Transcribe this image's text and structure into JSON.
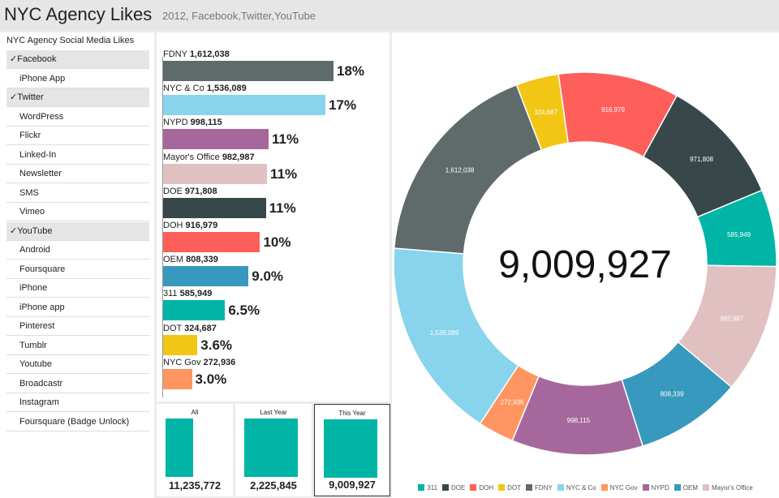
{
  "header": {
    "title": "NYC Agency Likes",
    "subtitle": "2012, Facebook,Twitter,YouTube"
  },
  "filter": {
    "title": "NYC Agency Social Media Likes",
    "items": [
      {
        "label": "Facebook",
        "checked": true
      },
      {
        "label": "iPhone App",
        "checked": false
      },
      {
        "label": "Twitter",
        "checked": true
      },
      {
        "label": "WordPress",
        "checked": false
      },
      {
        "label": "Flickr",
        "checked": false
      },
      {
        "label": "Linked-In",
        "checked": false
      },
      {
        "label": "Newsletter",
        "checked": false
      },
      {
        "label": "SMS",
        "checked": false
      },
      {
        "label": "Vimeo",
        "checked": false
      },
      {
        "label": "YouTube",
        "checked": true
      },
      {
        "label": "Android",
        "checked": false
      },
      {
        "label": "Foursquare",
        "checked": false
      },
      {
        "label": "iPhone",
        "checked": false
      },
      {
        "label": "iPhone app",
        "checked": false
      },
      {
        "label": "Pinterest",
        "checked": false
      },
      {
        "label": "Tumblr",
        "checked": false
      },
      {
        "label": "Youtube",
        "checked": false
      },
      {
        "label": "Broadcastr",
        "checked": false
      },
      {
        "label": "Instagram",
        "checked": false
      },
      {
        "label": "Foursquare (Badge Unlock)",
        "checked": false
      }
    ]
  },
  "chart_data": [
    {
      "type": "bar",
      "orientation": "horizontal",
      "categories": [
        "FDNY",
        "NYC & Co",
        "NYPD",
        "Mayor's Office",
        "DOE",
        "DOH",
        "OEM",
        "311",
        "DOT",
        "NYC Gov"
      ],
      "values": [
        1612038,
        1536089,
        998115,
        982987,
        971808,
        916979,
        808339,
        585949,
        324687,
        272936
      ],
      "value_labels": [
        "1,612,038",
        "1,536,089",
        "998,115",
        "982,987",
        "971,808",
        "916,979",
        "808,339",
        "585,949",
        "324,687",
        "272,936"
      ],
      "pct_labels": [
        "18%",
        "17%",
        "11%",
        "11%",
        "11%",
        "10%",
        "9.0%",
        "6.5%",
        "3.6%",
        "3.0%"
      ],
      "colors": [
        "#5f6a6a",
        "#87d4ec",
        "#a6689c",
        "#e0c0c0",
        "#37474a",
        "#ff5f5b",
        "#3799bd",
        "#00b5a6",
        "#f2c615",
        "#ff9561"
      ]
    },
    {
      "type": "pie",
      "donut": true,
      "center_label": "9,009,927",
      "categories": [
        "DOH",
        "DOE",
        "311",
        "Mayor's Office",
        "OEM",
        "NYPD",
        "NYC Gov",
        "NYC & Co",
        "FDNY",
        "DOT"
      ],
      "values": [
        916979,
        971808,
        585949,
        982987,
        808339,
        998115,
        272936,
        1536089,
        1612038,
        324687
      ],
      "value_labels": [
        "916,979",
        "971,808",
        "585,949",
        "982,987",
        "808,339",
        "998,115",
        "272,936",
        "1,536,089",
        "1,612,038",
        "324,687"
      ],
      "colors": [
        "#ff5f5b",
        "#37474a",
        "#00b5a6",
        "#e0c0c0",
        "#3799bd",
        "#a6689c",
        "#ff9561",
        "#87d4ec",
        "#5f6a6a",
        "#f2c615"
      ]
    },
    {
      "type": "bar",
      "categories": [
        "All",
        "Last Year",
        "This Year"
      ],
      "values": [
        11235772,
        2225845,
        9009927
      ],
      "value_labels": [
        "11,235,772",
        "2,225,845",
        "9,009,927"
      ],
      "selected": "This Year"
    }
  ],
  "legend": [
    {
      "label": "311",
      "color": "#00b5a6"
    },
    {
      "label": "DOE",
      "color": "#37474a"
    },
    {
      "label": "DOH",
      "color": "#ff5f5b"
    },
    {
      "label": "DOT",
      "color": "#f2c615"
    },
    {
      "label": "FDNY",
      "color": "#5f6a6a"
    },
    {
      "label": "NYC & Co",
      "color": "#87d4ec"
    },
    {
      "label": "NYC Gov",
      "color": "#ff9561"
    },
    {
      "label": "NYPD",
      "color": "#a6689c"
    },
    {
      "label": "OEM",
      "color": "#3799bd"
    },
    {
      "label": "Mayor's Office",
      "color": "#e0c0c0"
    }
  ]
}
